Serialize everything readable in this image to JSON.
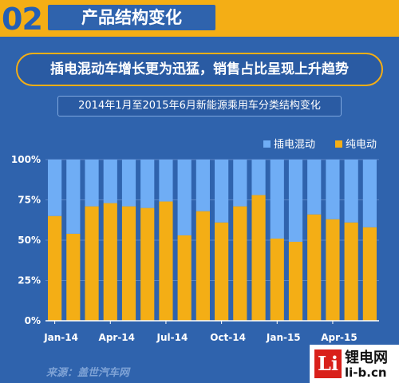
{
  "header": {
    "number": "02",
    "title": "产品结构变化"
  },
  "headline": "插电混动车增长更为迅猛，销售占比呈现上升趋势",
  "chart_data": {
    "type": "bar",
    "stacked": true,
    "title": "2014年1月至2015年6月新能源乘用车分类结构变化",
    "categories": [
      "Jan-14",
      "Feb-14",
      "Mar-14",
      "Apr-14",
      "May-14",
      "Jun-14",
      "Jul-14",
      "Aug-14",
      "Sep-14",
      "Oct-14",
      "Nov-14",
      "Dec-14",
      "Jan-15",
      "Feb-15",
      "Mar-15",
      "Apr-15",
      "May-15",
      "Jun-15"
    ],
    "tick_labels": [
      "Jan-14",
      "Apr-14",
      "Jul-14",
      "Oct-14",
      "Jan-15",
      "Apr-15"
    ],
    "y_ticks": [
      "0%",
      "25%",
      "50%",
      "75%",
      "100%"
    ],
    "ylim": [
      0,
      100
    ],
    "legend_position": "top-right",
    "series": [
      {
        "name": "纯电动",
        "color": "#f4ae15",
        "values": [
          65,
          54,
          71,
          73,
          71,
          70,
          74,
          53,
          68,
          61,
          71,
          78,
          51,
          49,
          66,
          63,
          61,
          58
        ]
      },
      {
        "name": "插电混动",
        "color": "#6fadf5",
        "values": [
          35,
          46,
          29,
          27,
          29,
          30,
          26,
          47,
          32,
          39,
          29,
          22,
          49,
          51,
          34,
          37,
          39,
          42
        ]
      }
    ]
  },
  "source": "来源：盖世汽车网",
  "watermark": {
    "logo": "Li",
    "name": "锂电网",
    "url": "li-b.cn"
  }
}
